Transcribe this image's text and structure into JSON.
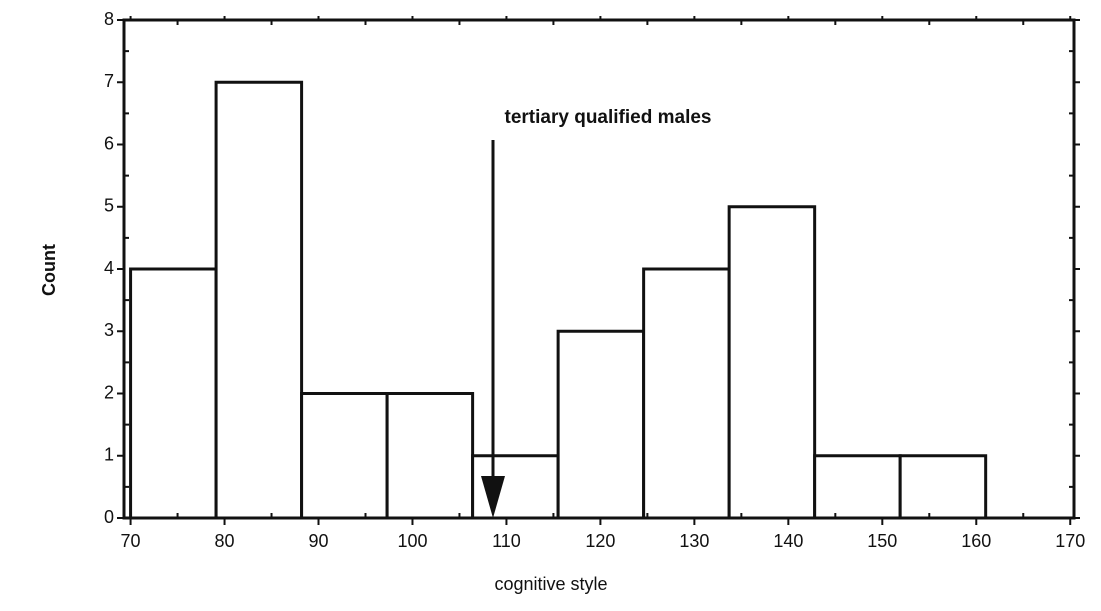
{
  "chart_data": {
    "type": "histogram",
    "annotation": "tertiary qualified males",
    "xlabel": "cognitive style",
    "ylabel": "Count",
    "bins": [
      70,
      79.1,
      88.2,
      97.3,
      106.4,
      115.5,
      124.6,
      133.7,
      142.8,
      151.9,
      161
    ],
    "values": [
      4,
      7,
      2,
      2,
      1,
      3,
      4,
      5,
      1,
      1
    ],
    "color": "#ffffff",
    "edgecolor": "#111111",
    "xlim": [
      69.3,
      170.4
    ],
    "ylim": [
      0,
      8
    ],
    "xticks": [
      70,
      80,
      90,
      100,
      110,
      120,
      130,
      140,
      150,
      160,
      170
    ],
    "yticks": [
      0,
      1,
      2,
      3,
      4,
      5,
      6,
      7,
      8
    ]
  }
}
